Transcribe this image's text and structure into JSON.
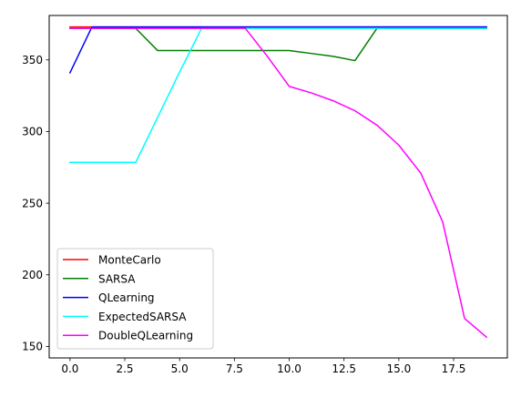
{
  "chart_data": {
    "type": "line",
    "x": [
      0,
      1,
      2,
      3,
      4,
      5,
      6,
      7,
      8,
      9,
      10,
      11,
      12,
      13,
      14,
      15,
      16,
      17,
      18,
      19
    ],
    "xlim": [
      -0.95,
      19.95
    ],
    "ylim": [
      142,
      381
    ],
    "x_ticks": [
      0.0,
      2.5,
      5.0,
      7.5,
      10.0,
      12.5,
      15.0,
      17.5
    ],
    "x_tick_labels": [
      "0.0",
      "2.5",
      "5.0",
      "7.5",
      "10.0",
      "12.5",
      "15.0",
      "17.5"
    ],
    "y_ticks": [
      150,
      200,
      250,
      300,
      350
    ],
    "y_tick_labels": [
      "150",
      "200",
      "250",
      "300",
      "350"
    ],
    "grid": false,
    "legend_position": "lower-left",
    "series": [
      {
        "name": "MonteCarlo",
        "color": "#ff0000",
        "values": [
          373,
          373,
          373,
          373,
          373,
          373,
          373,
          373,
          373,
          373,
          373,
          373,
          373,
          373,
          373,
          373,
          373,
          373,
          373,
          373
        ]
      },
      {
        "name": "SARSA",
        "color": "#008000",
        "values": [
          372,
          372,
          372,
          372,
          356.5,
          356.5,
          356.5,
          356.5,
          356.5,
          356.5,
          356.5,
          354.5,
          352.5,
          349.5,
          372,
          372,
          372,
          372,
          372,
          372
        ]
      },
      {
        "name": "QLearning",
        "color": "#0000ff",
        "values": [
          341,
          373,
          373,
          373,
          373,
          373,
          373,
          373,
          373,
          373,
          373,
          373,
          373,
          373,
          373,
          373,
          373,
          373,
          373,
          373
        ]
      },
      {
        "name": "ExpectedSARSA",
        "color": "#00ffff",
        "values": [
          278.5,
          278.5,
          278.5,
          278.5,
          310,
          341.5,
          372,
          372,
          372,
          372,
          372,
          372,
          372,
          372,
          372,
          372,
          372,
          372,
          372,
          372
        ]
      },
      {
        "name": "DoubleQLearning",
        "color": "#ff00ff",
        "values": [
          372,
          372,
          372,
          372,
          372,
          372,
          372,
          372,
          372,
          352.5,
          331.5,
          327,
          321.5,
          314.5,
          304.5,
          290.5,
          271,
          237,
          169.5,
          156.5
        ]
      }
    ]
  }
}
